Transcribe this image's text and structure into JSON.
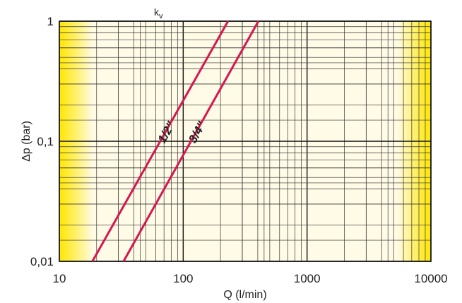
{
  "chart_data": {
    "type": "line",
    "title": "",
    "top_label": "kv",
    "xlabel": "Q (l/min)",
    "ylabel": "Δp (bar)",
    "x_scale": "log",
    "y_scale": "log",
    "xlim": [
      10,
      10000
    ],
    "ylim": [
      0.01,
      1
    ],
    "x_ticks": [
      10,
      100,
      1000,
      10000
    ],
    "x_tick_labels": [
      "10",
      "100",
      "1000",
      "10000"
    ],
    "y_ticks": [
      0.01,
      0.1,
      1
    ],
    "y_tick_labels": [
      "0,01",
      "0,1",
      "1"
    ],
    "grid": true,
    "series": [
      {
        "name": "1/2\"",
        "x": [
          18.5,
          230
        ],
        "y": [
          0.01,
          1
        ]
      },
      {
        "name": "3/4\"",
        "x": [
          33,
          405
        ],
        "y": [
          0.01,
          1
        ]
      }
    ],
    "colors": {
      "series": "#d6174f",
      "plot_background": "#fffbe6",
      "edge_band": "#ffe600",
      "grid": "#333333"
    }
  }
}
